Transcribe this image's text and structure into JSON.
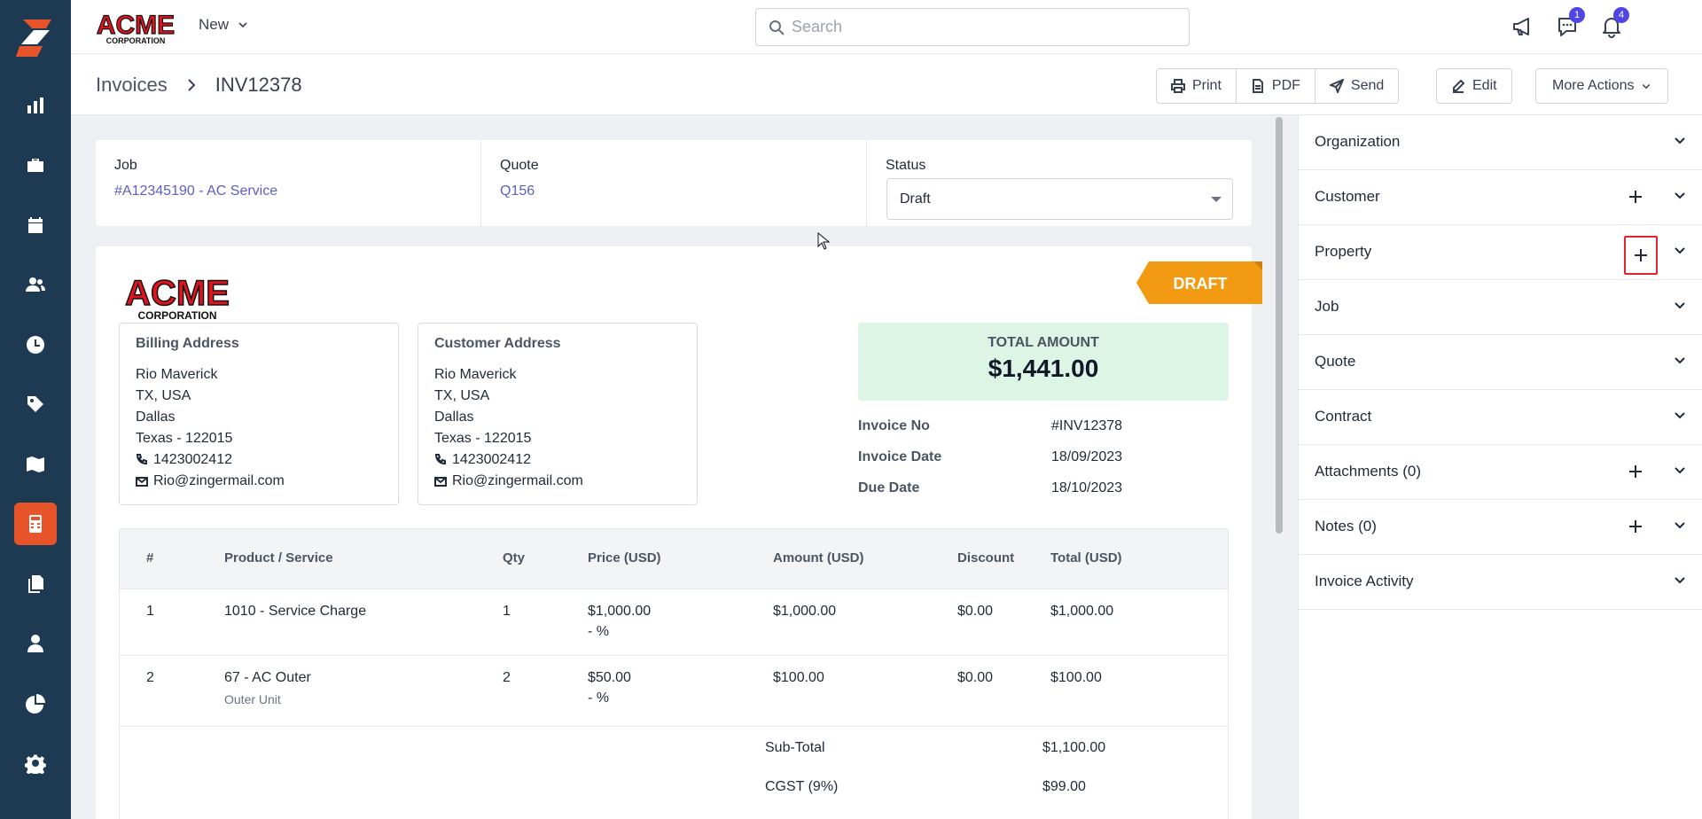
{
  "topbar": {
    "logo_text": "ACME",
    "logo_sub": "CORPORATION",
    "new_label": "New",
    "search_placeholder": "Search",
    "chat_badge": "1",
    "notif_badge": "4"
  },
  "sidebar": {
    "items": [
      "dashboard-icon",
      "briefcase-icon",
      "calendar-icon",
      "users-icon",
      "clock-icon",
      "tag-icon",
      "map-icon",
      "calculator-icon",
      "documents-icon",
      "person-icon",
      "pie-chart-icon",
      "gear-icon"
    ],
    "active_index": 7
  },
  "header": {
    "breadcrumb_root": "Invoices",
    "breadcrumb_current": "INV12378",
    "print_label": "Print",
    "pdf_label": "PDF",
    "send_label": "Send",
    "edit_label": "Edit",
    "more_label": "More Actions"
  },
  "info": {
    "job_label": "Job",
    "job_value": "#A12345190 - AC Service",
    "quote_label": "Quote",
    "quote_value": "Q156",
    "status_label": "Status",
    "status_value": "Draft"
  },
  "invoice": {
    "ribbon": "DRAFT",
    "billing": {
      "title": "Billing Address",
      "name": "Rio Maverick",
      "line1": "TX, USA",
      "city": "Dallas",
      "state": "Texas - 122015",
      "phone": "1423002412",
      "email": "Rio@zingermail.com"
    },
    "customer": {
      "title": "Customer Address",
      "name": "Rio Maverick",
      "line1": "TX, USA",
      "city": "Dallas",
      "state": "Texas - 122015",
      "phone": "1423002412",
      "email": "Rio@zingermail.com"
    },
    "total_label": "TOTAL AMOUNT",
    "total_value": "$1,441.00",
    "invoice_no_label": "Invoice No",
    "invoice_no": "#INV12378",
    "invoice_date_label": "Invoice Date",
    "invoice_date": "18/09/2023",
    "due_date_label": "Due Date",
    "due_date": "18/10/2023",
    "table": {
      "headers": [
        "#",
        "Product / Service",
        "Qty",
        "Price (USD)",
        "Amount (USD)",
        "Discount",
        "Total (USD)"
      ],
      "rows": [
        {
          "num": "1",
          "product": "1010 - Service Charge",
          "sub": "",
          "qty": "1",
          "price": "$1,000.00",
          "pct": "- %",
          "amount": "$1,000.00",
          "discount": "$0.00",
          "total": "$1,000.00"
        },
        {
          "num": "2",
          "product": "67 - AC Outer",
          "sub": "Outer Unit",
          "qty": "2",
          "price": "$50.00",
          "pct": "- %",
          "amount": "$100.00",
          "discount": "$0.00",
          "total": "$100.00"
        }
      ],
      "subtotal_label": "Sub-Total",
      "subtotal_value": "$1,100.00",
      "cgst_label": "CGST (9%)",
      "cgst_value": "$99.00"
    }
  },
  "panel": {
    "sections": [
      {
        "label": "Organization",
        "plus": false
      },
      {
        "label": "Customer",
        "plus": true
      },
      {
        "label": "Property",
        "plus": true,
        "highlight": true
      },
      {
        "label": "Job",
        "plus": false
      },
      {
        "label": "Quote",
        "plus": false
      },
      {
        "label": "Contract",
        "plus": false
      },
      {
        "label": "Attachments (0)",
        "plus": true
      },
      {
        "label": "Notes (0)",
        "plus": true
      },
      {
        "label": "Invoice Activity",
        "plus": false
      }
    ]
  },
  "colors": {
    "sidebar": "#1e3a52",
    "accent": "#e8542a",
    "link": "#5b5fc7",
    "draft": "#f29a12",
    "total_bg": "#dcf5e5"
  }
}
